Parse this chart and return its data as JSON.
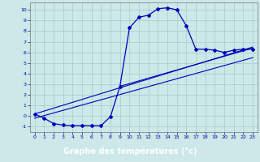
{
  "xlabel": "Graphe des températures (°c)",
  "bg_color": "#cce8e8",
  "grid_color": "#aacece",
  "line_color": "#0000bb",
  "xlim": [
    -0.5,
    23.5
  ],
  "ylim": [
    -1.5,
    10.7
  ],
  "xticks": [
    0,
    1,
    2,
    3,
    4,
    5,
    6,
    7,
    8,
    9,
    10,
    11,
    12,
    13,
    14,
    15,
    16,
    17,
    18,
    19,
    20,
    21,
    22,
    23
  ],
  "yticks": [
    -1,
    0,
    1,
    2,
    3,
    4,
    5,
    6,
    7,
    8,
    9,
    10
  ],
  "curve_x": [
    0,
    1,
    2,
    3,
    4,
    5,
    6,
    7,
    8,
    9,
    10,
    11,
    12,
    13,
    14,
    15,
    16,
    17,
    18,
    19,
    20,
    21,
    22,
    23
  ],
  "curve_y": [
    0.2,
    -0.2,
    -0.7,
    -0.85,
    -0.9,
    -0.9,
    -0.9,
    -0.9,
    -0.05,
    2.8,
    8.3,
    9.3,
    9.5,
    10.1,
    10.2,
    10.0,
    8.5,
    6.3,
    6.3,
    6.2,
    6.0,
    6.2,
    6.3,
    6.3
  ],
  "line1_x": [
    0,
    23
  ],
  "line1_y": [
    0.2,
    6.5
  ],
  "line2_x": [
    0,
    23
  ],
  "line2_y": [
    -0.2,
    5.5
  ],
  "line3_x": [
    9,
    23
  ],
  "line3_y": [
    2.8,
    6.4
  ],
  "navbar_color": "#000080",
  "tick_color": "#0000aa",
  "tick_fontsize": 4.5,
  "xlabel_fontsize": 7
}
